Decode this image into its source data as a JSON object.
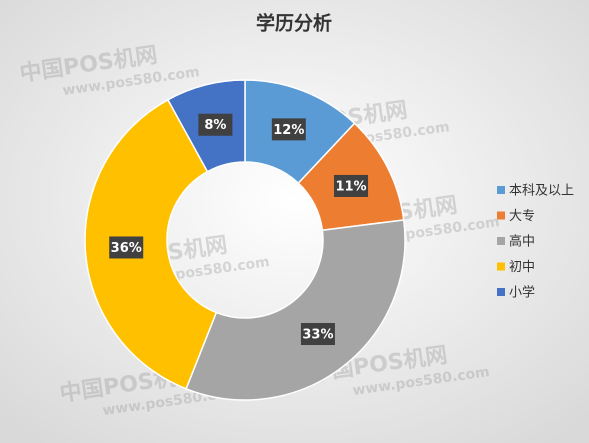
{
  "chart_data": {
    "type": "donut",
    "title": "学历分析",
    "categories": [
      "本科及以上",
      "大专",
      "高中",
      "初中",
      "小学"
    ],
    "values": [
      12,
      11,
      33,
      36,
      8
    ],
    "value_labels": [
      "12%",
      "11%",
      "33%",
      "36%",
      "8%"
    ],
    "colors": [
      "#5b9bd5",
      "#ed7d31",
      "#a5a5a5",
      "#ffc000",
      "#4472c4"
    ],
    "legend": "right",
    "watermark": [
      "中国POS机网",
      "www.pos580.com"
    ]
  }
}
